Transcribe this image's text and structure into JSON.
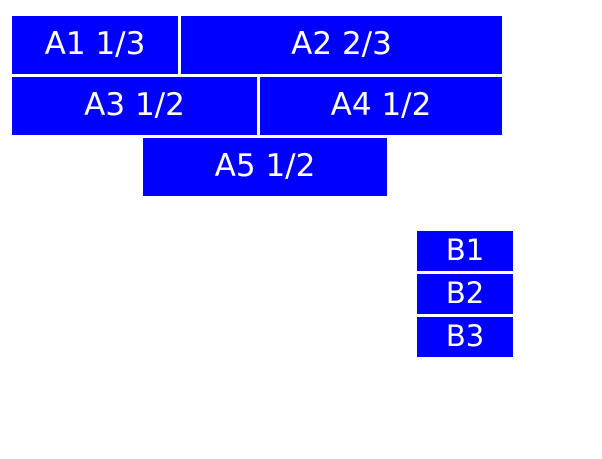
{
  "colors": {
    "box_fill": "#0000ff",
    "box_text": "#ffffff",
    "page_background": "#ffffff"
  },
  "group_a": [
    {
      "label": "A1 1/3"
    },
    {
      "label": "A2 2/3"
    },
    {
      "label": "A3 1/2"
    },
    {
      "label": "A4 1/2"
    },
    {
      "label": "A5 1/2"
    }
  ],
  "group_b": [
    {
      "label": "B1"
    },
    {
      "label": "B2"
    },
    {
      "label": "B3"
    }
  ]
}
